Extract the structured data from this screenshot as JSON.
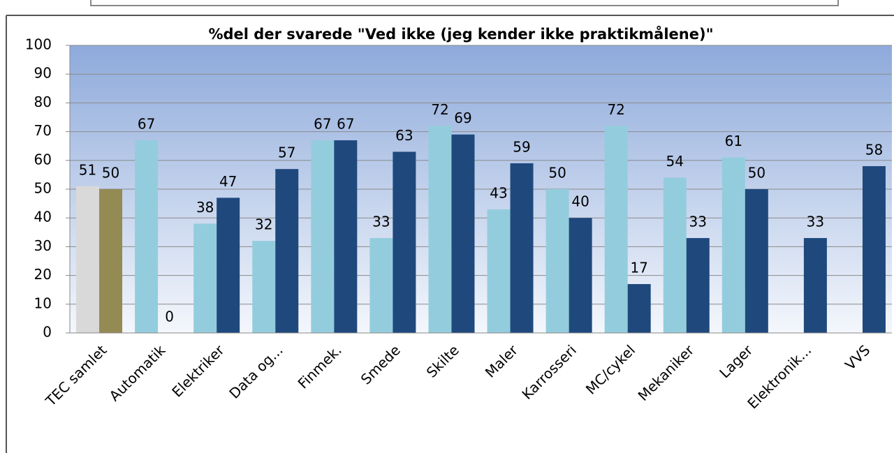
{
  "chart_data": {
    "type": "bar",
    "title": "%del der svarede \"Ved ikke (jeg kender ikke praktikmålene)\"",
    "categories": [
      "TEC samlet",
      "Automatik",
      "Elektriker",
      "Data og...",
      "Finmek.",
      "Smede",
      "Skilte",
      "Maler",
      "Karrosseri",
      "MC/cykel",
      "Mekaniker",
      "Lager",
      "Elektronik...",
      "VVS"
    ],
    "series": [
      {
        "color": "#93cddd",
        "colors": [
          "#d9d9d9",
          "#93cddd",
          "#93cddd",
          "#93cddd",
          "#93cddd",
          "#93cddd",
          "#93cddd",
          "#93cddd",
          "#93cddd",
          "#93cddd",
          "#93cddd",
          "#93cddd",
          "#93cddd",
          "#93cddd"
        ],
        "values": [
          51,
          67,
          38,
          32,
          67,
          33,
          72,
          43,
          50,
          72,
          54,
          61,
          null,
          null
        ]
      },
      {
        "color": "#1f497d",
        "colors": [
          "#948a54",
          "#1f497d",
          "#1f497d",
          "#1f497d",
          "#1f497d",
          "#1f497d",
          "#1f497d",
          "#1f497d",
          "#1f497d",
          "#1f497d",
          "#1f497d",
          "#1f497d",
          "#1f497d",
          "#1f497d"
        ],
        "values": [
          50,
          0,
          47,
          57,
          67,
          63,
          69,
          59,
          40,
          17,
          33,
          50,
          33,
          58
        ]
      }
    ],
    "ylim": [
      0,
      100
    ],
    "yticks": [
      0,
      10,
      20,
      30,
      40,
      50,
      60,
      70,
      80,
      90,
      100
    ],
    "grid": true
  }
}
